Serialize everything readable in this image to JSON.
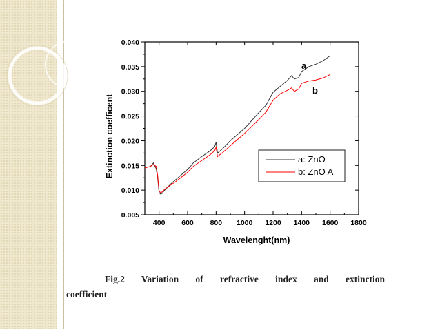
{
  "slide": {
    "accent_color": "#efe8cf"
  },
  "caption": {
    "line1": "Fig.2 Variation of refractive index and extinction",
    "line2": "coefficient"
  },
  "chart_data": {
    "type": "line",
    "xlabel": "Wavelenght(nm)",
    "ylabel": "Extinction coefficent",
    "xlim": [
      300,
      1800
    ],
    "ylim": [
      0.005,
      0.04
    ],
    "x_ticks": [
      400,
      600,
      800,
      1000,
      1200,
      1400,
      1600,
      1800
    ],
    "y_ticks": [
      "0.005",
      "0.010",
      "0.015",
      "0.020",
      "0.025",
      "0.030",
      "0.035",
      "0.040"
    ],
    "grid": false,
    "legend_position": "center-right",
    "series": [
      {
        "name": "a: ZnO",
        "tag": "a",
        "color": "#333333",
        "x": [
          300,
          340,
          360,
          380,
          390,
          400,
          410,
          420,
          440,
          480,
          520,
          560,
          600,
          620,
          640,
          700,
          760,
          790,
          800,
          810,
          850,
          900,
          1000,
          1100,
          1150,
          1200,
          1250,
          1300,
          1330,
          1340,
          1350,
          1380,
          1400,
          1450,
          1500,
          1550,
          1600
        ],
        "y": [
          0.0145,
          0.0148,
          0.0155,
          0.0143,
          0.0125,
          0.0095,
          0.0092,
          0.0093,
          0.01,
          0.0112,
          0.0122,
          0.0132,
          0.0142,
          0.0148,
          0.0155,
          0.0168,
          0.018,
          0.0188,
          0.0197,
          0.0175,
          0.0185,
          0.02,
          0.0225,
          0.0257,
          0.0272,
          0.0298,
          0.031,
          0.0322,
          0.0332,
          0.0328,
          0.0325,
          0.0328,
          0.034,
          0.035,
          0.0355,
          0.0362,
          0.0372
        ]
      },
      {
        "name": "b: ZnO A",
        "tag": "b",
        "color": "#ff0000",
        "x": [
          300,
          340,
          360,
          380,
          390,
          400,
          410,
          420,
          440,
          480,
          520,
          560,
          600,
          620,
          640,
          700,
          760,
          790,
          800,
          810,
          850,
          900,
          1000,
          1100,
          1150,
          1200,
          1250,
          1300,
          1330,
          1340,
          1350,
          1380,
          1400,
          1450,
          1500,
          1550,
          1600
        ],
        "y": [
          0.0145,
          0.0148,
          0.0152,
          0.0148,
          0.013,
          0.0098,
          0.0095,
          0.0096,
          0.0102,
          0.011,
          0.0118,
          0.0127,
          0.0136,
          0.0142,
          0.0148,
          0.016,
          0.0172,
          0.018,
          0.0187,
          0.0168,
          0.0177,
          0.019,
          0.0215,
          0.0243,
          0.0258,
          0.0282,
          0.0295,
          0.0302,
          0.0307,
          0.0303,
          0.03,
          0.0305,
          0.0316,
          0.0321,
          0.0323,
          0.0327,
          0.0334
        ]
      }
    ]
  }
}
